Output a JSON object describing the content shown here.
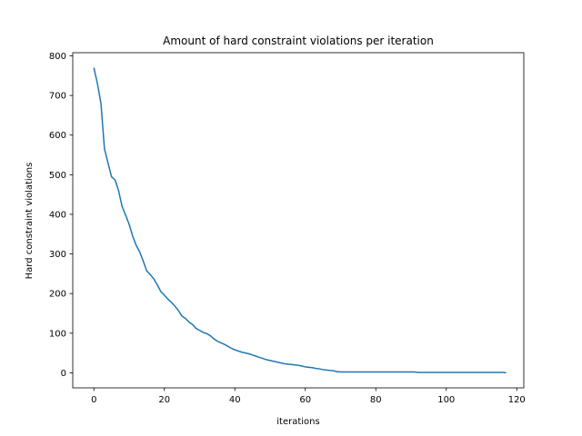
{
  "chart_data": {
    "type": "line",
    "title": "Amount of hard constraint violations per iteration",
    "xlabel": "iterations",
    "ylabel": "Hard constraint violations",
    "xlim": [
      -6,
      122
    ],
    "ylim": [
      -38,
      808
    ],
    "xticks": [
      0,
      20,
      40,
      60,
      80,
      100,
      120
    ],
    "yticks": [
      0,
      100,
      200,
      300,
      400,
      500,
      600,
      700,
      800
    ],
    "grid": false,
    "line_color": "#1f77b4",
    "series": [
      {
        "x": [
          0,
          1,
          2,
          3,
          4,
          5,
          6,
          7,
          8,
          9,
          10,
          11,
          12,
          13,
          14,
          15,
          16,
          17,
          18,
          19,
          20,
          21,
          22,
          23,
          24,
          25,
          26,
          27,
          28,
          29,
          30,
          31,
          32,
          33,
          34,
          35,
          36,
          37,
          38,
          39,
          40,
          41,
          42,
          43,
          44,
          45,
          46,
          47,
          48,
          49,
          50,
          51,
          52,
          53,
          54,
          55,
          56,
          57,
          58,
          59,
          60,
          61,
          62,
          63,
          64,
          65,
          66,
          67,
          68,
          69,
          70,
          71,
          72,
          73,
          74,
          75,
          76,
          77,
          78,
          79,
          80,
          81,
          82,
          83,
          84,
          85,
          86,
          87,
          88,
          89,
          90,
          91,
          92,
          93,
          94,
          95,
          96,
          97,
          98,
          99,
          100,
          101,
          102,
          103,
          104,
          105,
          106,
          107,
          108,
          109,
          110,
          111,
          112,
          113,
          114,
          115,
          116,
          117
        ],
        "values": [
          770,
          730,
          680,
          565,
          530,
          495,
          487,
          460,
          420,
          398,
          375,
          345,
          322,
          305,
          282,
          257,
          248,
          237,
          222,
          205,
          196,
          186,
          178,
          168,
          157,
          143,
          137,
          128,
          122,
          112,
          107,
          102,
          99,
          94,
          86,
          80,
          76,
          72,
          67,
          62,
          58,
          55,
          52,
          50,
          48,
          45,
          42,
          39,
          36,
          33,
          31,
          29,
          27,
          25,
          23,
          22,
          21,
          20,
          19,
          17,
          15,
          14,
          13,
          11,
          10,
          8,
          7,
          6,
          5,
          3,
          2,
          2,
          2,
          2,
          2,
          2,
          2,
          2,
          2,
          2,
          2,
          2,
          2,
          2,
          2,
          2,
          2,
          2,
          2,
          2,
          2,
          2,
          1,
          1,
          1,
          1,
          1,
          1,
          1,
          1,
          1,
          1,
          1,
          1,
          1,
          1,
          1,
          1,
          1,
          1,
          1,
          1,
          1,
          1,
          1,
          1,
          1,
          0
        ]
      }
    ]
  }
}
